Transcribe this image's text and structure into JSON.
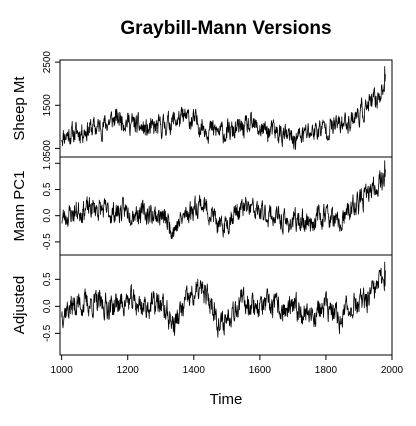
{
  "chart_data": {
    "type": "line",
    "title": "Graybill-Mann Versions",
    "xlabel": "Time",
    "xlim": [
      995,
      2000
    ],
    "x_ticks": [
      1000,
      1200,
      1400,
      1600,
      1800,
      2000
    ],
    "x_tick_labels": [
      "1000",
      "1200",
      "1400",
      "1600",
      "1800",
      "2000"
    ],
    "panels": [
      {
        "ylabel": "Sheep Mt",
        "ylim": [
          300,
          2550
        ],
        "y_ticks": [
          500,
          1500,
          2500
        ],
        "y_tick_labels": [
          "500",
          "1500",
          "2500"
        ],
        "anchors": [
          [
            1000,
            800
          ],
          [
            1040,
            850
          ],
          [
            1080,
            950
          ],
          [
            1120,
            1000
          ],
          [
            1150,
            1150
          ],
          [
            1180,
            1200
          ],
          [
            1220,
            1050
          ],
          [
            1260,
            900
          ],
          [
            1300,
            1000
          ],
          [
            1340,
            1150
          ],
          [
            1380,
            1200
          ],
          [
            1420,
            1050
          ],
          [
            1460,
            900
          ],
          [
            1500,
            850
          ],
          [
            1540,
            950
          ],
          [
            1580,
            1000
          ],
          [
            1620,
            900
          ],
          [
            1660,
            850
          ],
          [
            1700,
            700
          ],
          [
            1740,
            850
          ],
          [
            1780,
            950
          ],
          [
            1820,
            1000
          ],
          [
            1860,
            1100
          ],
          [
            1900,
            1300
          ],
          [
            1930,
            1500
          ],
          [
            1950,
            1600
          ],
          [
            1965,
            1800
          ],
          [
            1980,
            2000
          ]
        ],
        "noise": 200,
        "final_peak": 2400,
        "seed": 11
      },
      {
        "ylabel": "Mann PC1",
        "ylim": [
          -0.75,
          1.12
        ],
        "y_ticks": [
          -0.5,
          0.0,
          0.5,
          1.0
        ],
        "y_tick_labels": [
          "-0.5",
          "0.0",
          "0.5",
          "1.0"
        ],
        "anchors": [
          [
            1000,
            -0.05
          ],
          [
            1050,
            0.1
          ],
          [
            1100,
            0.15
          ],
          [
            1150,
            0.05
          ],
          [
            1200,
            0.1
          ],
          [
            1250,
            0.05
          ],
          [
            1300,
            0.0
          ],
          [
            1340,
            -0.25
          ],
          [
            1380,
            0.05
          ],
          [
            1420,
            0.25
          ],
          [
            1460,
            0.0
          ],
          [
            1480,
            -0.3
          ],
          [
            1520,
            0.05
          ],
          [
            1560,
            0.15
          ],
          [
            1600,
            0.05
          ],
          [
            1640,
            0.0
          ],
          [
            1680,
            -0.15
          ],
          [
            1720,
            -0.1
          ],
          [
            1760,
            -0.1
          ],
          [
            1800,
            0.05
          ],
          [
            1840,
            -0.2
          ],
          [
            1880,
            0.15
          ],
          [
            1920,
            0.35
          ],
          [
            1950,
            0.55
          ],
          [
            1980,
            0.8
          ]
        ],
        "noise": 0.17,
        "final_peak": 1.05,
        "seed": 23
      },
      {
        "ylabel": "Adjusted",
        "ylim": [
          -0.9,
          0.95
        ],
        "y_ticks": [
          -0.5,
          0.0,
          0.5
        ],
        "y_tick_labels": [
          "-0.5",
          "0.0",
          "0.5"
        ],
        "anchors": [
          [
            1000,
            -0.1
          ],
          [
            1050,
            0.05
          ],
          [
            1100,
            0.05
          ],
          [
            1150,
            0.0
          ],
          [
            1200,
            0.1
          ],
          [
            1250,
            0.0
          ],
          [
            1300,
            0.05
          ],
          [
            1340,
            -0.35
          ],
          [
            1380,
            0.1
          ],
          [
            1420,
            0.3
          ],
          [
            1460,
            0.0
          ],
          [
            1480,
            -0.4
          ],
          [
            1520,
            0.0
          ],
          [
            1560,
            0.1
          ],
          [
            1600,
            0.0
          ],
          [
            1640,
            0.0
          ],
          [
            1680,
            -0.1
          ],
          [
            1720,
            -0.05
          ],
          [
            1760,
            -0.15
          ],
          [
            1800,
            0.0
          ],
          [
            1840,
            -0.25
          ],
          [
            1880,
            0.05
          ],
          [
            1920,
            0.05
          ],
          [
            1950,
            0.3
          ],
          [
            1980,
            0.6
          ]
        ],
        "noise": 0.19,
        "final_peak": 0.82,
        "seed": 37
      }
    ]
  }
}
